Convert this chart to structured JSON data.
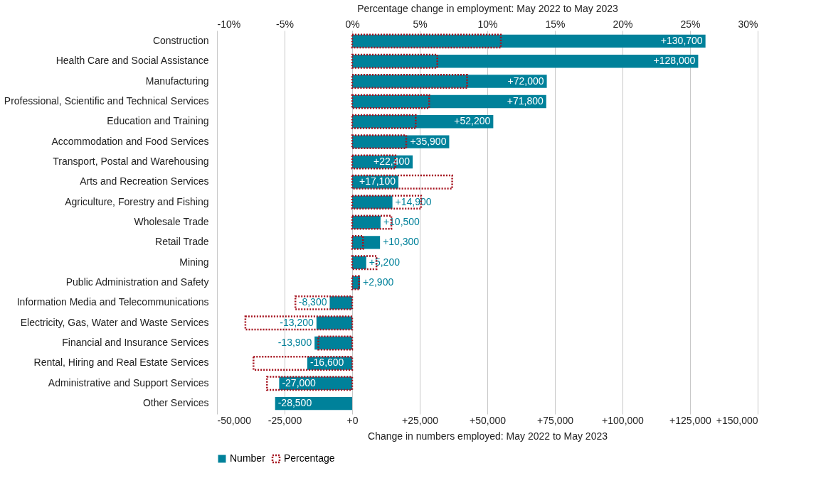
{
  "chart_data": {
    "type": "bar",
    "orientation": "horizontal",
    "categories": [
      "Construction",
      "Health Care and Social Assistance",
      "Manufacturing",
      "Professional, Scientific and Technical Services",
      "Education and Training",
      "Accommodation and Food Services",
      "Transport, Postal and Warehousing",
      "Arts and Recreation Services",
      "Agriculture, Forestry and Fishing",
      "Wholesale Trade",
      "Retail Trade",
      "Mining",
      "Public Administration and Safety",
      "Information Media and Telecommunications",
      "Electricity, Gas, Water and Waste Services",
      "Financial and Insurance Services",
      "Rental, Hiring and Real Estate Services",
      "Administrative and Support Services",
      "Other Services"
    ],
    "series": [
      {
        "name": "Number",
        "color": "#00819a",
        "values": [
          130700,
          128000,
          72000,
          71800,
          52200,
          35900,
          22400,
          17100,
          14900,
          10500,
          10300,
          5200,
          2900,
          -8300,
          -13200,
          -13900,
          -16600,
          -27000,
          -28500
        ],
        "value_labels": [
          "+130,700",
          "+128,000",
          "+72,000",
          "+71,800",
          "+52,200",
          "+35,900",
          "+22,400",
          "+17,100",
          "+14,900",
          "+10,500",
          "+10,300",
          "+5,200",
          "+2,900",
          "-8,300",
          "-13,200",
          "-13,900",
          "-16,600",
          "-27,000",
          "-28,500"
        ]
      },
      {
        "name": "Percentage",
        "color": "#a5121e",
        "axis": "x2",
        "line_style": "dotted",
        "values": [
          11.0,
          6.3,
          8.5,
          5.7,
          4.7,
          4.0,
          3.2,
          7.4,
          5.1,
          2.9,
          0.8,
          1.8,
          0.5,
          -4.2,
          -7.9,
          -2.5,
          -7.3,
          -6.3,
          null
        ]
      }
    ],
    "xlabel": "Change in numbers employed: May 2022 to May 2023",
    "x2label": "Percentage change in employment: May 2022 to May 2023",
    "xlim": [
      -50000,
      150000
    ],
    "xticks": [
      {
        "value": -50000,
        "label": "-50,000"
      },
      {
        "value": -25000,
        "label": "-25,000"
      },
      {
        "value": 0,
        "label": "+0"
      },
      {
        "value": 25000,
        "label": "+25,000"
      },
      {
        "value": 50000,
        "label": "+50,000"
      },
      {
        "value": 75000,
        "label": "+75,000"
      },
      {
        "value": 100000,
        "label": "+100,000"
      },
      {
        "value": 125000,
        "label": "+125,000"
      },
      {
        "value": 150000,
        "label": "+150,000"
      }
    ],
    "x2lim": [
      -10,
      30
    ],
    "x2ticks": [
      {
        "value": -10,
        "label": "-10%"
      },
      {
        "value": -5,
        "label": "-5%"
      },
      {
        "value": 0,
        "label": "0%"
      },
      {
        "value": 5,
        "label": "5%"
      },
      {
        "value": 10,
        "label": "10%"
      },
      {
        "value": 15,
        "label": "15%"
      },
      {
        "value": 20,
        "label": "20%"
      },
      {
        "value": 25,
        "label": "25%"
      },
      {
        "value": 30,
        "label": "30%"
      }
    ],
    "grid": "x",
    "legend": "bottom"
  }
}
